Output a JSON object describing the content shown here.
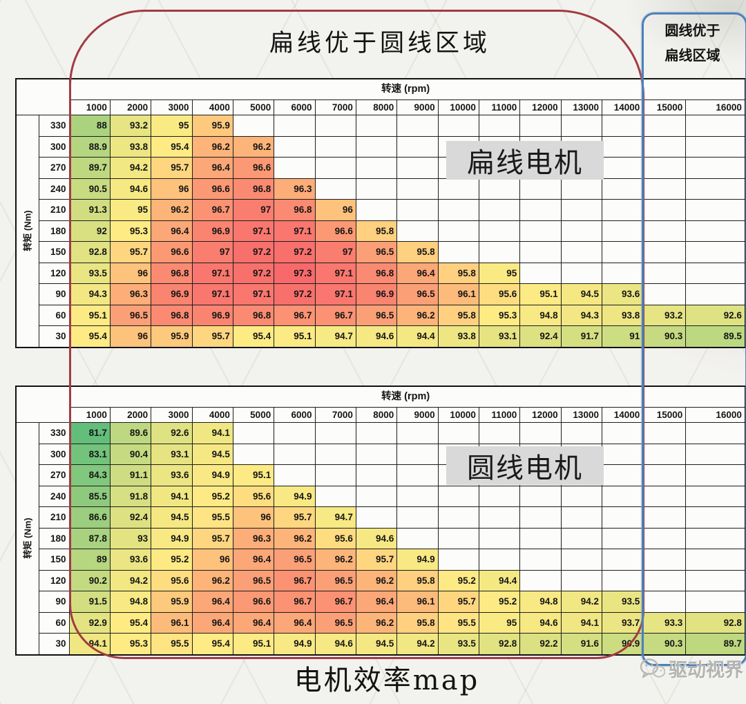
{
  "overlays": {
    "red_region": {
      "label": "扁线优于圆线区域"
    },
    "blue_region": {
      "line1": "圆线优于",
      "line2": "扁线区域"
    },
    "caption": "电机效率map",
    "watermark": {
      "brand": "驱动视界",
      "icon": "wechat-logo"
    }
  },
  "colors": {
    "scale_low": "#63BE7B",
    "scale_mid": "#FFEB84",
    "scale_high": "#F8696B",
    "empty_cell": "#FCFCFA",
    "red_outline": "#A13B42",
    "blue_outline": "#4E80B8",
    "motor_label_bg": "#D9D9D9"
  },
  "chart_data": [
    {
      "type": "heatmap",
      "name": "flat-wire-motor-efficiency-map",
      "overlay_label": "扁线电机",
      "x_axis_label": "转速 (rpm)",
      "y_axis_label": "转矩 (Nm)",
      "x": [
        1000,
        2000,
        3000,
        4000,
        5000,
        6000,
        7000,
        8000,
        9000,
        10000,
        11000,
        12000,
        13000,
        14000,
        15000,
        16000
      ],
      "y": [
        330,
        300,
        270,
        240,
        210,
        180,
        150,
        120,
        90,
        60,
        30
      ],
      "values": [
        [
          88,
          93.2,
          95,
          95.9,
          null,
          null,
          null,
          null,
          null,
          null,
          null,
          null,
          null,
          null,
          null,
          null
        ],
        [
          88.9,
          93.8,
          95.4,
          96.2,
          96.2,
          null,
          null,
          null,
          null,
          null,
          null,
          null,
          null,
          null,
          null,
          null
        ],
        [
          89.7,
          94.2,
          95.7,
          96.4,
          96.6,
          null,
          null,
          null,
          null,
          null,
          null,
          null,
          null,
          null,
          null,
          null
        ],
        [
          90.5,
          94.6,
          96,
          96.6,
          96.8,
          96.3,
          null,
          null,
          null,
          null,
          null,
          null,
          null,
          null,
          null,
          null
        ],
        [
          91.3,
          95,
          96.2,
          96.7,
          97,
          96.8,
          96,
          null,
          null,
          null,
          null,
          null,
          null,
          null,
          null,
          null
        ],
        [
          92,
          95.3,
          96.4,
          96.9,
          97.1,
          97.1,
          96.6,
          95.8,
          null,
          null,
          null,
          null,
          null,
          null,
          null,
          null
        ],
        [
          92.8,
          95.7,
          96.6,
          97,
          97.2,
          97.2,
          97,
          96.5,
          95.8,
          null,
          null,
          null,
          null,
          null,
          null,
          null
        ],
        [
          93.5,
          96,
          96.8,
          97.1,
          97.2,
          97.3,
          97.1,
          96.8,
          96.4,
          95.8,
          95,
          null,
          null,
          null,
          null,
          null
        ],
        [
          94.3,
          96.3,
          96.9,
          97.1,
          97.1,
          97.2,
          97.1,
          96.9,
          96.5,
          96.1,
          95.6,
          95.1,
          94.5,
          93.6,
          null,
          null
        ],
        [
          95.1,
          96.5,
          96.8,
          96.9,
          96.8,
          96.7,
          96.7,
          96.5,
          96.2,
          95.8,
          95.3,
          94.8,
          94.3,
          93.8,
          93.2,
          92.6
        ],
        [
          95.4,
          96,
          95.9,
          95.7,
          95.4,
          95.1,
          94.7,
          94.6,
          94.4,
          93.8,
          93.1,
          92.4,
          91.7,
          91,
          90.3,
          89.5
        ]
      ]
    },
    {
      "type": "heatmap",
      "name": "round-wire-motor-efficiency-map",
      "overlay_label": "圆线电机",
      "x_axis_label": "转速 (rpm)",
      "y_axis_label": "转矩 (Nm)",
      "x": [
        1000,
        2000,
        3000,
        4000,
        5000,
        6000,
        7000,
        8000,
        9000,
        10000,
        11000,
        12000,
        13000,
        14000,
        15000,
        16000
      ],
      "y": [
        330,
        300,
        270,
        240,
        210,
        180,
        150,
        120,
        90,
        60,
        30
      ],
      "values": [
        [
          81.7,
          89.6,
          92.6,
          94.1,
          null,
          null,
          null,
          null,
          null,
          null,
          null,
          null,
          null,
          null,
          null,
          null
        ],
        [
          83.1,
          90.4,
          93.1,
          94.5,
          null,
          null,
          null,
          null,
          null,
          null,
          null,
          null,
          null,
          null,
          null,
          null
        ],
        [
          84.3,
          91.1,
          93.6,
          94.9,
          95.1,
          null,
          null,
          null,
          null,
          null,
          null,
          null,
          null,
          null,
          null,
          null
        ],
        [
          85.5,
          91.8,
          94.1,
          95.2,
          95.6,
          94.9,
          null,
          null,
          null,
          null,
          null,
          null,
          null,
          null,
          null,
          null
        ],
        [
          86.6,
          92.4,
          94.5,
          95.5,
          96,
          95.7,
          94.7,
          null,
          null,
          null,
          null,
          null,
          null,
          null,
          null,
          null
        ],
        [
          87.8,
          93,
          94.9,
          95.7,
          96.3,
          96.2,
          95.6,
          94.6,
          null,
          null,
          null,
          null,
          null,
          null,
          null,
          null
        ],
        [
          89,
          93.6,
          95.2,
          96,
          96.4,
          96.5,
          96.2,
          95.7,
          94.9,
          null,
          null,
          null,
          null,
          null,
          null,
          null
        ],
        [
          90.2,
          94.2,
          95.6,
          96.2,
          96.5,
          96.7,
          96.5,
          96.2,
          95.8,
          95.2,
          94.4,
          null,
          null,
          null,
          null,
          null
        ],
        [
          91.5,
          94.8,
          95.9,
          96.4,
          96.6,
          96.7,
          96.7,
          96.4,
          96.1,
          95.7,
          95.2,
          94.8,
          94.2,
          93.5,
          null,
          null
        ],
        [
          92.9,
          95.4,
          96.1,
          96.4,
          96.4,
          96.4,
          96.5,
          96.2,
          95.8,
          95.5,
          95,
          94.6,
          94.1,
          93.7,
          93.3,
          92.8
        ],
        [
          94.1,
          95.3,
          95.5,
          95.4,
          95.1,
          94.9,
          94.6,
          94.5,
          94.2,
          93.5,
          92.8,
          92.2,
          91.6,
          90.9,
          90.3,
          89.7
        ]
      ]
    }
  ]
}
